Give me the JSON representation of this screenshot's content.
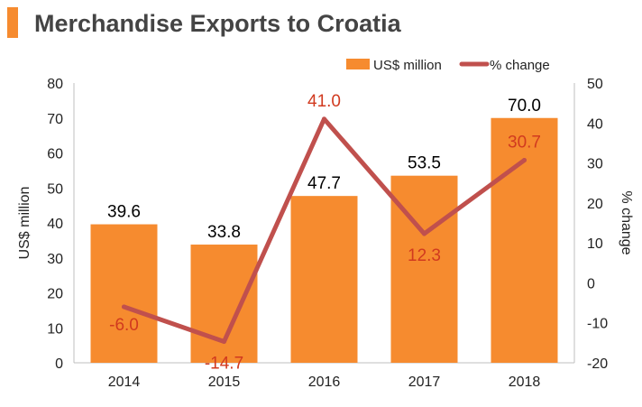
{
  "header": {
    "title": "Merchandise Exports to Croatia"
  },
  "colors": {
    "accent": "#f68b2f",
    "bar": "#f68b2f",
    "line": "#c0504d",
    "line_label": "#d13a1f"
  },
  "chart_data": {
    "type": "bar",
    "title": "Merchandise Exports to Croatia",
    "categories": [
      "2014",
      "2015",
      "2016",
      "2017",
      "2018"
    ],
    "series": [
      {
        "name": "US$ million",
        "type": "bar",
        "axis": "left",
        "values": [
          39.6,
          33.8,
          47.7,
          53.5,
          70.0
        ],
        "labels": [
          "39.6",
          "33.8",
          "47.7",
          "53.5",
          "70.0"
        ]
      },
      {
        "name": "% change",
        "type": "line",
        "axis": "right",
        "values": [
          -6.0,
          -14.7,
          41.0,
          12.3,
          30.7
        ],
        "labels": [
          "-6.0",
          "-14.7",
          "41.0",
          "12.3",
          "30.7"
        ]
      }
    ],
    "ylabel": "US$ million",
    "y2label": "% change",
    "ylim": [
      0,
      80
    ],
    "y2lim": [
      -20,
      50
    ],
    "yticks": [
      "0",
      "10",
      "20",
      "30",
      "40",
      "50",
      "60",
      "70",
      "80"
    ],
    "y2ticks": [
      "-20",
      "-10",
      "0",
      "10",
      "20",
      "30",
      "40",
      "50"
    ],
    "legend": "top-right",
    "grid": false
  }
}
